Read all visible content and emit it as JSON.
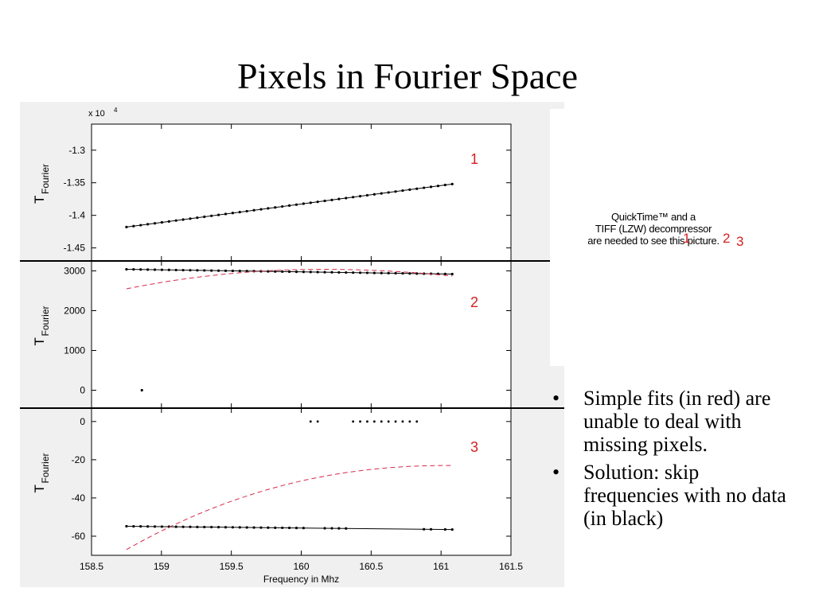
{
  "slide": {
    "title": "Pixels in Fourier Space"
  },
  "quicktime_placeholder": {
    "lines": [
      "QuickTime™ and a",
      "TIFF (LZW) decompressor",
      "are needed to see this picture."
    ],
    "overlay_labels": [
      "1",
      "2",
      "3"
    ]
  },
  "bullets": [
    "Simple fits (in red) are unable to deal with missing pixels.",
    "Solution: skip frequencies with no data (in black)"
  ],
  "chart_data": {
    "type": "scatter",
    "xlabel": "Frequency in Mhz",
    "xlim": [
      158.5,
      161.5
    ],
    "x_ticks": [
      "158.5",
      "159",
      "159.5",
      "160",
      "160.5",
      "161",
      "161.5"
    ],
    "colors": {
      "data": "#000000",
      "fit": "#d62a4a",
      "panel_label": "#d42020",
      "background": "#f0f0f0"
    },
    "panels": [
      {
        "label": "1",
        "ylabel": "T",
        "ylabel_sub": "Fourier",
        "multiplier": "x 10",
        "multiplier_exp": "4",
        "ylim": [
          -1.47,
          -1.26
        ],
        "y_ticks": [
          -1.3,
          -1.35,
          -1.4,
          -1.45
        ],
        "y_tick_labels": [
          "-1.3",
          "-1.35",
          "-1.4",
          "-1.45"
        ],
        "series": [
          {
            "style": "points-line",
            "x_start": 158.75,
            "x_end": 161.08,
            "n": 47,
            "y_start": -1.418,
            "y_end": -1.352,
            "shape": "linear"
          }
        ]
      },
      {
        "label": "2",
        "ylabel": "T",
        "ylabel_sub": "Fourier",
        "ylim": [
          -450,
          3250
        ],
        "y_ticks": [
          0,
          1000,
          2000,
          3000
        ],
        "y_tick_labels": [
          "0",
          "1000",
          "2000",
          "3000"
        ],
        "series": [
          {
            "style": "points-line",
            "x_start": 158.75,
            "x_end": 161.08,
            "n": 47,
            "y_start": 3040,
            "y_end": 2920,
            "shape": "linear",
            "outliers": [
              [
                158.86,
                0
              ]
            ]
          },
          {
            "style": "dashed-fit",
            "x_start": 158.75,
            "x_end": 161.08,
            "y_start": 2550,
            "y_peak_x": 160.15,
            "y_peak": 3040,
            "y_end": 2870,
            "shape": "parabola"
          }
        ]
      },
      {
        "label": "3",
        "ylabel": "T",
        "ylabel_sub": "Fourier",
        "ylim": [
          -70,
          7
        ],
        "y_ticks": [
          0,
          -20,
          -40,
          -60
        ],
        "y_tick_labels": [
          "0",
          "-20",
          "-40",
          "-60"
        ],
        "series": [
          {
            "style": "points-line",
            "x_start": 158.75,
            "x_end": 161.08,
            "n": 47,
            "y_start": -54.8,
            "y_end": -56.5,
            "shape": "linear",
            "missing_x": [
              [
                160.05,
                160.15
              ],
              [
                160.35,
                160.85
              ]
            ],
            "outliers_at_zero": true,
            "extra_gaps": [
              [
                160.4,
                160.55
              ],
              [
                160.95,
                161.0
              ]
            ]
          },
          {
            "style": "dashed-fit",
            "x_start": 158.75,
            "x_end": 161.08,
            "y_start": -67,
            "y_end": -23,
            "shape": "saturating"
          }
        ]
      }
    ]
  }
}
